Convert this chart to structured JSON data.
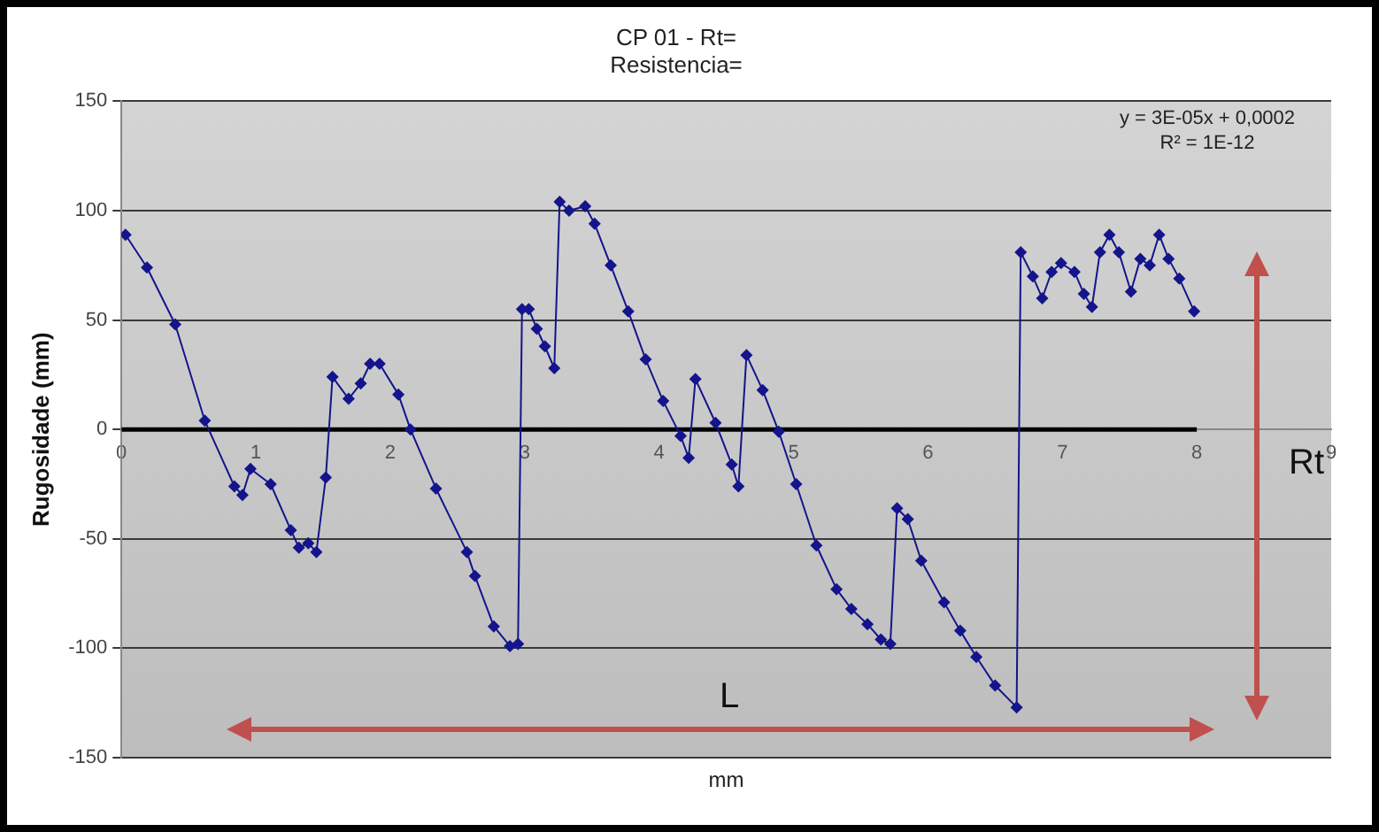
{
  "chart_data": {
    "type": "line",
    "title": "CP 01 - Rt=",
    "subtitle": "Resistencia=",
    "xlabel": "mm",
    "ylabel": "Rugosidade (mm)",
    "xlim": [
      0,
      9
    ],
    "xticks": [
      0,
      1,
      2,
      3,
      4,
      5,
      6,
      7,
      8,
      9
    ],
    "ylim": [
      -150,
      150
    ],
    "yticks": [
      -150,
      -100,
      -50,
      0,
      50,
      100,
      150
    ],
    "grid": "y",
    "legend": false,
    "annotations": [
      "y = 3E-05x + 0,0002",
      "R² = 1E-12",
      "L",
      "Rt"
    ],
    "series": [
      {
        "color": "#14148c",
        "marker": "diamond",
        "line_style": "solid",
        "x": [
          0.03,
          0.19,
          0.4,
          0.62,
          0.84,
          0.9,
          0.96,
          1.11,
          1.26,
          1.32,
          1.39,
          1.45,
          1.52,
          1.57,
          1.69,
          1.78,
          1.85,
          1.92,
          2.06,
          2.15,
          2.34,
          2.57,
          2.63,
          2.77,
          2.89,
          2.95,
          2.98,
          3.03,
          3.09,
          3.15,
          3.22,
          3.26,
          3.33,
          3.45,
          3.52,
          3.64,
          3.77,
          3.9,
          4.03,
          4.16,
          4.22,
          4.27,
          4.42,
          4.54,
          4.59,
          4.65,
          4.77,
          4.89,
          5.02,
          5.17,
          5.32,
          5.43,
          5.55,
          5.65,
          5.72,
          5.77,
          5.85,
          5.95,
          6.12,
          6.24,
          6.36,
          6.5,
          6.66,
          6.69,
          6.78,
          6.85,
          6.92,
          6.99,
          7.09,
          7.16,
          7.22,
          7.28,
          7.35,
          7.42,
          7.51,
          7.58,
          7.65,
          7.72,
          7.79,
          7.87,
          7.98
        ],
        "values": [
          89,
          74,
          48,
          4,
          -26,
          -30,
          -18,
          -25,
          -46,
          -54,
          -52,
          -56,
          -22,
          24,
          14,
          21,
          30,
          30,
          16,
          0,
          -27,
          -56,
          -67,
          -90,
          -99,
          -98,
          55,
          55,
          46,
          38,
          28,
          104,
          100,
          102,
          94,
          75,
          54,
          32,
          13,
          -3,
          -13,
          23,
          3,
          -16,
          -26,
          34,
          18,
          -1,
          -25,
          -53,
          -73,
          -82,
          -89,
          -96,
          -98,
          -36,
          -41,
          -60,
          -79,
          -92,
          -104,
          -117,
          -127,
          81,
          70,
          60,
          72,
          76,
          72,
          62,
          56,
          81,
          89,
          81,
          63,
          78,
          75,
          89,
          78,
          69,
          54
        ]
      },
      {
        "type": "line",
        "color": "#000000",
        "marker": "none",
        "x": [
          0,
          8
        ],
        "values": [
          0,
          0
        ]
      }
    ]
  }
}
